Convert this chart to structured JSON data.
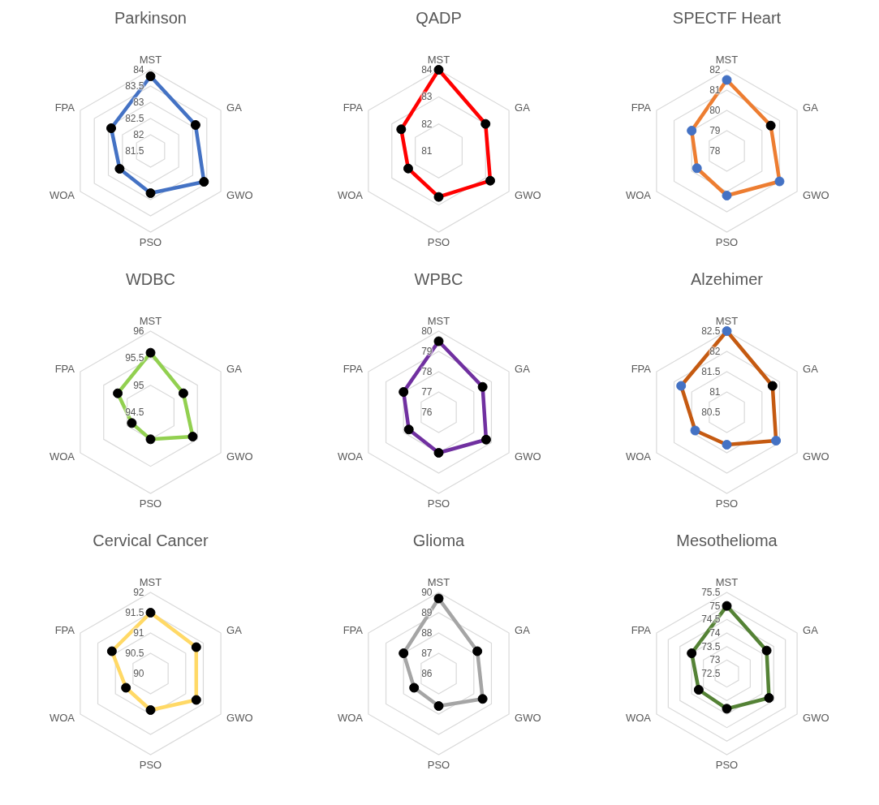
{
  "chart_data": [
    {
      "type": "radar",
      "title": "Parkinson",
      "categories": [
        "MST",
        "GA",
        "GWO",
        "PSO",
        "WOA",
        "FPA"
      ],
      "ylim": [
        81.5,
        84
      ],
      "yticks": [
        81.5,
        82,
        82.5,
        83,
        83.5,
        84
      ],
      "grid": true,
      "marker": "circle",
      "series": [
        {
          "color": "#4472c4",
          "colors": [
            "#000000",
            "#000000",
            "#000000",
            "#000000",
            "#000000",
            "#000000"
          ],
          "values": [
            83.8,
            83.1,
            83.4,
            82.8,
            82.6,
            82.9
          ]
        }
      ]
    },
    {
      "type": "radar",
      "title": "QADP",
      "categories": [
        "MST",
        "GA",
        "GWO",
        "PSO",
        "WOA",
        "FPA"
      ],
      "ylim": [
        81,
        84
      ],
      "yticks": [
        81,
        82,
        83,
        84
      ],
      "grid": true,
      "marker": "circle",
      "series": [
        {
          "color": "#ff0000",
          "colors": [
            "#000000",
            "#000000",
            "#000000",
            "#000000",
            "#000000",
            "#000000"
          ],
          "values": [
            84.0,
            83.0,
            83.2,
            82.7,
            82.3,
            82.6
          ]
        }
      ]
    },
    {
      "type": "radar",
      "title": "SPECTF Heart",
      "categories": [
        "MST",
        "GA",
        "GWO",
        "PSO",
        "WOA",
        "FPA"
      ],
      "ylim": [
        78,
        82
      ],
      "yticks": [
        78,
        79,
        80,
        81,
        82
      ],
      "grid": true,
      "marker": "circle",
      "series": [
        {
          "color": "#ed7d31",
          "colors": [
            "#4472c4",
            "#000000",
            "#4472c4",
            "#4472c4",
            "#4472c4",
            "#4472c4"
          ],
          "values": [
            81.5,
            80.5,
            81.0,
            80.2,
            79.7,
            80.0
          ]
        }
      ]
    },
    {
      "type": "radar",
      "title": "WDBC",
      "categories": [
        "MST",
        "GA",
        "GWO",
        "PSO",
        "WOA",
        "FPA"
      ],
      "ylim": [
        94.5,
        96
      ],
      "yticks": [
        94.5,
        95,
        95.5,
        96
      ],
      "grid": true,
      "marker": "circle",
      "series": [
        {
          "color": "#92d050",
          "colors": [
            "#000000",
            "#000000",
            "#000000",
            "#000000",
            "#000000",
            "#000000"
          ],
          "values": [
            95.6,
            95.2,
            95.4,
            95.0,
            94.9,
            95.2
          ]
        }
      ]
    },
    {
      "type": "radar",
      "title": "WPBC",
      "categories": [
        "MST",
        "GA",
        "GWO",
        "PSO",
        "WOA",
        "FPA"
      ],
      "ylim": [
        76,
        80
      ],
      "yticks": [
        76,
        77,
        78,
        79,
        80
      ],
      "grid": true,
      "marker": "circle",
      "series": [
        {
          "color": "#7030a0",
          "colors": [
            "#000000",
            "#000000",
            "#000000",
            "#000000",
            "#000000",
            "#000000"
          ],
          "values": [
            79.5,
            78.5,
            78.7,
            78.0,
            77.7,
            78.0
          ]
        }
      ]
    },
    {
      "type": "radar",
      "title": "Alzehimer",
      "categories": [
        "MST",
        "GA",
        "GWO",
        "PSO",
        "WOA",
        "FPA"
      ],
      "ylim": [
        80.5,
        82.5
      ],
      "yticks": [
        80.5,
        81,
        81.5,
        82,
        82.5
      ],
      "grid": true,
      "marker": "circle",
      "series": [
        {
          "color": "#c55a11",
          "colors": [
            "#4472c4",
            "#000000",
            "#4472c4",
            "#4472c4",
            "#4472c4",
            "#4472c4"
          ],
          "values": [
            82.5,
            81.8,
            81.9,
            81.3,
            81.4,
            81.8
          ]
        }
      ]
    },
    {
      "type": "radar",
      "title": "Cervical Cancer",
      "categories": [
        "MST",
        "GA",
        "GWO",
        "PSO",
        "WOA",
        "FPA"
      ],
      "ylim": [
        90,
        92
      ],
      "yticks": [
        90,
        90.5,
        91,
        91.5,
        92
      ],
      "grid": true,
      "marker": "circle",
      "series": [
        {
          "color": "#ffd966",
          "colors": [
            "#000000",
            "#000000",
            "#000000",
            "#000000",
            "#000000",
            "#000000"
          ],
          "values": [
            91.5,
            91.3,
            91.3,
            90.9,
            90.7,
            91.1
          ]
        }
      ]
    },
    {
      "type": "radar",
      "title": "Glioma",
      "categories": [
        "MST",
        "GA",
        "GWO",
        "PSO",
        "WOA",
        "FPA"
      ],
      "ylim": [
        86,
        90
      ],
      "yticks": [
        86,
        87,
        88,
        89,
        90
      ],
      "grid": true,
      "marker": "circle",
      "series": [
        {
          "color": "#a5a5a5",
          "colors": [
            "#000000",
            "#000000",
            "#000000",
            "#000000",
            "#000000",
            "#000000"
          ],
          "values": [
            89.7,
            88.2,
            88.5,
            87.6,
            87.4,
            88.0
          ]
        }
      ]
    },
    {
      "type": "radar",
      "title": "Mesothelioma",
      "categories": [
        "MST",
        "GA",
        "GWO",
        "PSO",
        "WOA",
        "FPA"
      ],
      "ylim": [
        72.5,
        75.5
      ],
      "yticks": [
        72.5,
        73,
        73.5,
        74,
        74.5,
        75,
        75.5
      ],
      "grid": true,
      "marker": "circle",
      "series": [
        {
          "color": "#548235",
          "colors": [
            "#000000",
            "#000000",
            "#000000",
            "#000000",
            "#000000",
            "#000000"
          ],
          "values": [
            75.0,
            74.2,
            74.3,
            73.8,
            73.7,
            74.0
          ]
        }
      ]
    }
  ]
}
